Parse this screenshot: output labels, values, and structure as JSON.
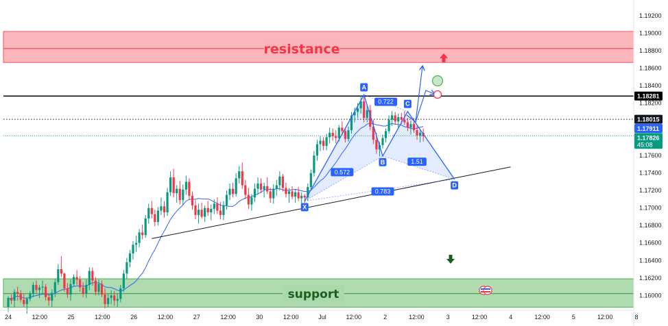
{
  "chart_data": {
    "type": "candlestick",
    "y_axis": {
      "range": [
        1.1583,
        1.1938
      ],
      "ticks": [
        "1.19200",
        "1.19000",
        "1.18800",
        "1.18600",
        "1.18400",
        "1.18200",
        "1.18000",
        "1.17800",
        "1.17600",
        "1.17400",
        "1.17200",
        "1.17000",
        "1.16800",
        "1.16600",
        "1.16400",
        "1.16200",
        "1.16000"
      ]
    },
    "x_axis": {
      "ticks": [
        "24",
        "12:00",
        "25",
        "12:00",
        "26",
        "12:00",
        "27",
        "12:00",
        "30",
        "12:00",
        "Jul",
        "12:00",
        "2",
        "12:00",
        "3",
        "12:00",
        "4",
        "12:00",
        "5",
        "12:00",
        "8"
      ]
    },
    "zones": {
      "resistance": {
        "label": "resistance",
        "low": 1.18665,
        "high": 1.1902,
        "mid": 1.18825,
        "color": "#f7525f"
      },
      "support": {
        "label": "support",
        "low": 1.15865,
        "high": 1.1619,
        "mid": 1.1602,
        "color": "#4caf50"
      }
    },
    "horizontal_lines": [
      {
        "price": 1.18281,
        "label": "1.18281",
        "style": "solid",
        "color": "#000000"
      },
      {
        "price": 1.18015,
        "label": "1.18015",
        "style": "dotted",
        "color": "#131722"
      }
    ],
    "price_badges": [
      {
        "price": 1.17911,
        "label": "1.17911",
        "color": "#2962ff"
      },
      {
        "price": 1.17826,
        "label": "1.17826",
        "sublabel": "45:08",
        "color": "#089981"
      }
    ],
    "pattern": {
      "points": [
        {
          "label": "X",
          "bar": 95,
          "price": 1.1708
        },
        {
          "label": "A",
          "bar": 114,
          "price": 1.18295
        },
        {
          "label": "B",
          "bar": 120,
          "price": 1.17595
        },
        {
          "label": "C",
          "bar": 128,
          "price": 1.18105
        },
        {
          "label": "D",
          "bar": 143,
          "price": 1.1733
        }
      ],
      "ratios": [
        {
          "label": "0.572",
          "bar": 107,
          "price": 1.1741
        },
        {
          "label": "0.722",
          "bar": 121,
          "price": 1.18215
        },
        {
          "label": "1.51",
          "bar": 131,
          "price": 1.1753
        },
        {
          "label": "0.783",
          "bar": 120,
          "price": 1.1719
        }
      ]
    },
    "trendline": {
      "from": {
        "bar": 46,
        "price": 1.1665
      },
      "to": {
        "bar": 161,
        "price": 1.1747
      }
    },
    "candles": [
      [
        1.1587,
        1.1599,
        1.1581,
        1.1597
      ],
      [
        1.1597,
        1.1601,
        1.159,
        1.1594
      ],
      [
        1.1594,
        1.1607,
        1.1586,
        1.1604
      ],
      [
        1.1604,
        1.161,
        1.1594,
        1.1602
      ],
      [
        1.1602,
        1.1606,
        1.1592,
        1.1595
      ],
      [
        1.1595,
        1.1602,
        1.1587,
        1.159
      ],
      [
        1.159,
        1.1598,
        1.1579,
        1.1596
      ],
      [
        1.1596,
        1.1605,
        1.1593,
        1.1602
      ],
      [
        1.1602,
        1.1615,
        1.1598,
        1.1612
      ],
      [
        1.1612,
        1.1617,
        1.1602,
        1.1606
      ],
      [
        1.1606,
        1.1612,
        1.1597,
        1.1609
      ],
      [
        1.1609,
        1.1617,
        1.1601,
        1.161
      ],
      [
        1.161,
        1.1613,
        1.1594,
        1.1598
      ],
      [
        1.1598,
        1.1602,
        1.1588,
        1.1594
      ],
      [
        1.1594,
        1.1607,
        1.1587,
        1.1603
      ],
      [
        1.1603,
        1.1619,
        1.1598,
        1.1615
      ],
      [
        1.1615,
        1.1636,
        1.1612,
        1.163
      ],
      [
        1.163,
        1.1645,
        1.1621,
        1.1625
      ],
      [
        1.1625,
        1.1626,
        1.1604,
        1.1608
      ],
      [
        1.1608,
        1.1614,
        1.1597,
        1.1601
      ],
      [
        1.1601,
        1.1618,
        1.1594,
        1.1613
      ],
      [
        1.1613,
        1.1624,
        1.161,
        1.1621
      ],
      [
        1.1621,
        1.1629,
        1.1612,
        1.1618
      ],
      [
        1.1618,
        1.1622,
        1.1604,
        1.1609
      ],
      [
        1.1609,
        1.1615,
        1.1598,
        1.1602
      ],
      [
        1.1602,
        1.1618,
        1.1597,
        1.1612
      ],
      [
        1.1612,
        1.1632,
        1.1606,
        1.1628
      ],
      [
        1.1628,
        1.1632,
        1.1611,
        1.1617
      ],
      [
        1.1617,
        1.1621,
        1.16,
        1.1604
      ],
      [
        1.1604,
        1.1618,
        1.16,
        1.1613
      ],
      [
        1.1613,
        1.1617,
        1.1598,
        1.1601
      ],
      [
        1.1601,
        1.1608,
        1.1585,
        1.159
      ],
      [
        1.159,
        1.1602,
        1.1586,
        1.1597
      ],
      [
        1.1597,
        1.1606,
        1.159,
        1.16
      ],
      [
        1.16,
        1.1605,
        1.1588,
        1.1594
      ],
      [
        1.1594,
        1.1602,
        1.1587,
        1.1596
      ],
      [
        1.1596,
        1.1612,
        1.1592,
        1.1608
      ],
      [
        1.1608,
        1.1629,
        1.1604,
        1.1625
      ],
      [
        1.1625,
        1.1643,
        1.1619,
        1.1638
      ],
      [
        1.1638,
        1.1652,
        1.1632,
        1.1648
      ],
      [
        1.1648,
        1.1662,
        1.1641,
        1.1658
      ],
      [
        1.1658,
        1.1668,
        1.165,
        1.166
      ],
      [
        1.166,
        1.1676,
        1.1655,
        1.1672
      ],
      [
        1.1672,
        1.1681,
        1.1664,
        1.1669
      ],
      [
        1.1669,
        1.1692,
        1.1666,
        1.1688
      ],
      [
        1.1688,
        1.1705,
        1.1682,
        1.17
      ],
      [
        1.17,
        1.1708,
        1.1688,
        1.1693
      ],
      [
        1.1693,
        1.1698,
        1.1679,
        1.1684
      ],
      [
        1.1684,
        1.1701,
        1.168,
        1.1697
      ],
      [
        1.1697,
        1.1712,
        1.1692,
        1.1702
      ],
      [
        1.1702,
        1.1708,
        1.1689,
        1.1695
      ],
      [
        1.1695,
        1.1723,
        1.1691,
        1.1718
      ],
      [
        1.1718,
        1.1742,
        1.1714,
        1.1735
      ],
      [
        1.1735,
        1.1745,
        1.1712,
        1.1717
      ],
      [
        1.1717,
        1.1726,
        1.1706,
        1.1722
      ],
      [
        1.1722,
        1.1731,
        1.1704,
        1.1709
      ],
      [
        1.1709,
        1.1727,
        1.1703,
        1.1721
      ],
      [
        1.1721,
        1.1737,
        1.1715,
        1.173
      ],
      [
        1.173,
        1.1734,
        1.1709,
        1.1714
      ],
      [
        1.1714,
        1.1719,
        1.1698,
        1.1703
      ],
      [
        1.1703,
        1.1709,
        1.1687,
        1.1692
      ],
      [
        1.1692,
        1.1705,
        1.1682,
        1.1698
      ],
      [
        1.1698,
        1.1706,
        1.1688,
        1.169
      ],
      [
        1.169,
        1.1703,
        1.1684,
        1.17
      ],
      [
        1.17,
        1.1708,
        1.1691,
        1.1695
      ],
      [
        1.1695,
        1.1704,
        1.1686,
        1.1699
      ],
      [
        1.1699,
        1.171,
        1.1693,
        1.1705
      ],
      [
        1.1705,
        1.1712,
        1.1693,
        1.1697
      ],
      [
        1.1697,
        1.1707,
        1.1687,
        1.1692
      ],
      [
        1.1692,
        1.1708,
        1.1686,
        1.1703
      ],
      [
        1.1703,
        1.172,
        1.1698,
        1.1715
      ],
      [
        1.1715,
        1.1728,
        1.1709,
        1.1722
      ],
      [
        1.1722,
        1.1729,
        1.1712,
        1.1716
      ],
      [
        1.1716,
        1.174,
        1.1713,
        1.1734
      ],
      [
        1.1734,
        1.1748,
        1.1728,
        1.1742
      ],
      [
        1.1742,
        1.1752,
        1.1722,
        1.1726
      ],
      [
        1.1726,
        1.1732,
        1.171,
        1.1715
      ],
      [
        1.1715,
        1.1723,
        1.1699,
        1.1704
      ],
      [
        1.1704,
        1.1716,
        1.1697,
        1.1712
      ],
      [
        1.1712,
        1.1728,
        1.1707,
        1.1722
      ],
      [
        1.1722,
        1.1735,
        1.1715,
        1.1728
      ],
      [
        1.1728,
        1.1734,
        1.1717,
        1.1721
      ],
      [
        1.1721,
        1.1729,
        1.1712,
        1.1725
      ],
      [
        1.1725,
        1.1735,
        1.1716,
        1.1719
      ],
      [
        1.1719,
        1.1723,
        1.1706,
        1.1711
      ],
      [
        1.1711,
        1.1727,
        1.1705,
        1.1722
      ],
      [
        1.1722,
        1.1732,
        1.1714,
        1.1726
      ],
      [
        1.1726,
        1.1742,
        1.172,
        1.1736
      ],
      [
        1.1736,
        1.1739,
        1.1719,
        1.1723
      ],
      [
        1.1723,
        1.1729,
        1.1712,
        1.1716
      ],
      [
        1.1716,
        1.1723,
        1.1706,
        1.1719
      ],
      [
        1.1719,
        1.1725,
        1.171,
        1.1713
      ],
      [
        1.1713,
        1.1721,
        1.1706,
        1.1718
      ],
      [
        1.1718,
        1.1724,
        1.1708,
        1.1711
      ],
      [
        1.1711,
        1.1718,
        1.1703,
        1.1714
      ],
      [
        1.1714,
        1.1716,
        1.1706,
        1.1712
      ],
      [
        1.1712,
        1.1728,
        1.1708,
        1.1724
      ],
      [
        1.1724,
        1.1744,
        1.172,
        1.174
      ],
      [
        1.174,
        1.1765,
        1.1736,
        1.176
      ],
      [
        1.176,
        1.1778,
        1.1754,
        1.1773
      ],
      [
        1.1773,
        1.1782,
        1.1765,
        1.1777
      ],
      [
        1.1777,
        1.1781,
        1.1766,
        1.1771
      ],
      [
        1.1771,
        1.1785,
        1.1766,
        1.1781
      ],
      [
        1.1781,
        1.1792,
        1.1774,
        1.1786
      ],
      [
        1.1786,
        1.1791,
        1.1777,
        1.1782
      ],
      [
        1.1782,
        1.1789,
        1.1774,
        1.178
      ],
      [
        1.178,
        1.1795,
        1.1776,
        1.1792
      ],
      [
        1.1792,
        1.1799,
        1.1783,
        1.1788
      ],
      [
        1.1788,
        1.1791,
        1.1775,
        1.1779
      ],
      [
        1.1779,
        1.1793,
        1.1776,
        1.1789
      ],
      [
        1.1789,
        1.181,
        1.1785,
        1.1806
      ],
      [
        1.1806,
        1.1815,
        1.1798,
        1.181
      ],
      [
        1.181,
        1.182,
        1.1803,
        1.1814
      ],
      [
        1.1814,
        1.1829,
        1.1808,
        1.1822
      ],
      [
        1.1822,
        1.1828,
        1.1798,
        1.1803
      ],
      [
        1.1803,
        1.1818,
        1.1798,
        1.1812
      ],
      [
        1.1812,
        1.1818,
        1.1789,
        1.1793
      ],
      [
        1.1793,
        1.1801,
        1.1773,
        1.1778
      ],
      [
        1.1778,
        1.1786,
        1.1762,
        1.1767
      ],
      [
        1.1767,
        1.1776,
        1.1759,
        1.1772
      ],
      [
        1.1772,
        1.1784,
        1.1768,
        1.178
      ],
      [
        1.178,
        1.1791,
        1.1775,
        1.1788
      ],
      [
        1.1788,
        1.1806,
        1.1785,
        1.1801
      ],
      [
        1.1801,
        1.1811,
        1.1794,
        1.1806
      ],
      [
        1.1806,
        1.181,
        1.1795,
        1.1799
      ],
      [
        1.1799,
        1.1808,
        1.1792,
        1.1804
      ],
      [
        1.1804,
        1.1809,
        1.1796,
        1.1801
      ],
      [
        1.1801,
        1.1811,
        1.1795,
        1.1798
      ],
      [
        1.1798,
        1.1803,
        1.1788,
        1.1792
      ],
      [
        1.1792,
        1.18,
        1.1784,
        1.1796
      ],
      [
        1.1796,
        1.1803,
        1.1786,
        1.1789
      ],
      [
        1.1789,
        1.1794,
        1.1778,
        1.1783
      ],
      [
        1.1783,
        1.1789,
        1.1775,
        1.1786
      ],
      [
        1.1786,
        1.1791,
        1.1776,
        1.1782
      ]
    ]
  }
}
